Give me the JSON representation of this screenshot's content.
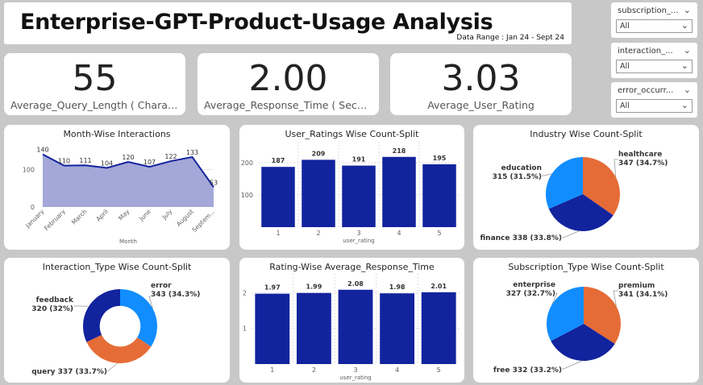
{
  "header": {
    "title": "Enterprise-GPT-Product-Usage Analysis",
    "date_range": "Data Range : Jan 24 - Sept 24"
  },
  "kpis": [
    {
      "value": "55",
      "label": "Average_Query_Length ( Character..."
    },
    {
      "value": "2.00",
      "label": "Average_Response_Time ( Seconds )"
    },
    {
      "value": "3.03",
      "label": "Average_User_Rating"
    }
  ],
  "slicers": [
    {
      "label": "subscription_...",
      "value": "All"
    },
    {
      "label": "interaction_...",
      "value": "All"
    },
    {
      "label": "error_occurr...",
      "value": "All"
    }
  ],
  "colors": {
    "dark_blue": "#12239e",
    "light_blue": "#118dff",
    "orange": "#e66c37",
    "area_fill": "#a3a8d8",
    "line": "#12239e"
  },
  "chart_data": [
    {
      "type": "area",
      "title": "Month-Wise Interactions",
      "xlabel": "Month",
      "categories": [
        "January",
        "February",
        "March",
        "April",
        "May",
        "June",
        "July",
        "August",
        "Septem..."
      ],
      "values": [
        140,
        110,
        111,
        104,
        120,
        107,
        122,
        133,
        53
      ],
      "yticks": [
        "0",
        "100"
      ],
      "ylim": [
        0,
        150
      ]
    },
    {
      "type": "bar",
      "title": "User_Ratings Wise Count-Split",
      "xlabel": "user_rating",
      "categories": [
        "1",
        "2",
        "3",
        "4",
        "5"
      ],
      "values": [
        187,
        209,
        191,
        218,
        195
      ],
      "yticks": [
        "100",
        "200"
      ],
      "ylim": [
        0,
        240
      ]
    },
    {
      "type": "pie",
      "title": "Industry Wise Count-Split",
      "slices": [
        {
          "name": "healthcare",
          "label": "347 (34.7%)",
          "value": 347,
          "color": "#e66c37"
        },
        {
          "name": "finance",
          "label": "finance 338 (33.8%)",
          "value": 338,
          "color": "#12239e"
        },
        {
          "name": "education",
          "label": "315 (31.5%)",
          "value": 315,
          "color": "#118dff"
        }
      ]
    },
    {
      "type": "pie",
      "title": "Interaction_Type Wise Count-Split",
      "donut": true,
      "slices": [
        {
          "name": "error",
          "label": "343 (34.3%)",
          "value": 343,
          "color": "#118dff"
        },
        {
          "name": "query",
          "label": "query 337 (33.7%)",
          "value": 337,
          "color": "#e66c37"
        },
        {
          "name": "feedback",
          "label": "320 (32%)",
          "value": 320,
          "color": "#12239e"
        }
      ]
    },
    {
      "type": "bar",
      "title": "Rating-Wise Average_Response_Time",
      "xlabel": "user_rating",
      "categories": [
        "1",
        "2",
        "3",
        "4",
        "5"
      ],
      "values": [
        1.97,
        1.99,
        2.08,
        1.98,
        2.01
      ],
      "labels": [
        "1.97",
        "1.99",
        "2.08",
        "1.98",
        "2.01"
      ],
      "yticks": [
        "1",
        "2"
      ],
      "ylim": [
        0,
        2.3
      ]
    },
    {
      "type": "pie",
      "title": "Subscription_Type Wise Count-Split",
      "slices": [
        {
          "name": "premium",
          "label": "341 (34.1%)",
          "value": 341,
          "color": "#e66c37"
        },
        {
          "name": "free",
          "label": "free 332 (33.2%)",
          "value": 332,
          "color": "#12239e"
        },
        {
          "name": "enterprise",
          "label": "327 (32.7%)",
          "value": 327,
          "color": "#118dff"
        }
      ]
    }
  ]
}
